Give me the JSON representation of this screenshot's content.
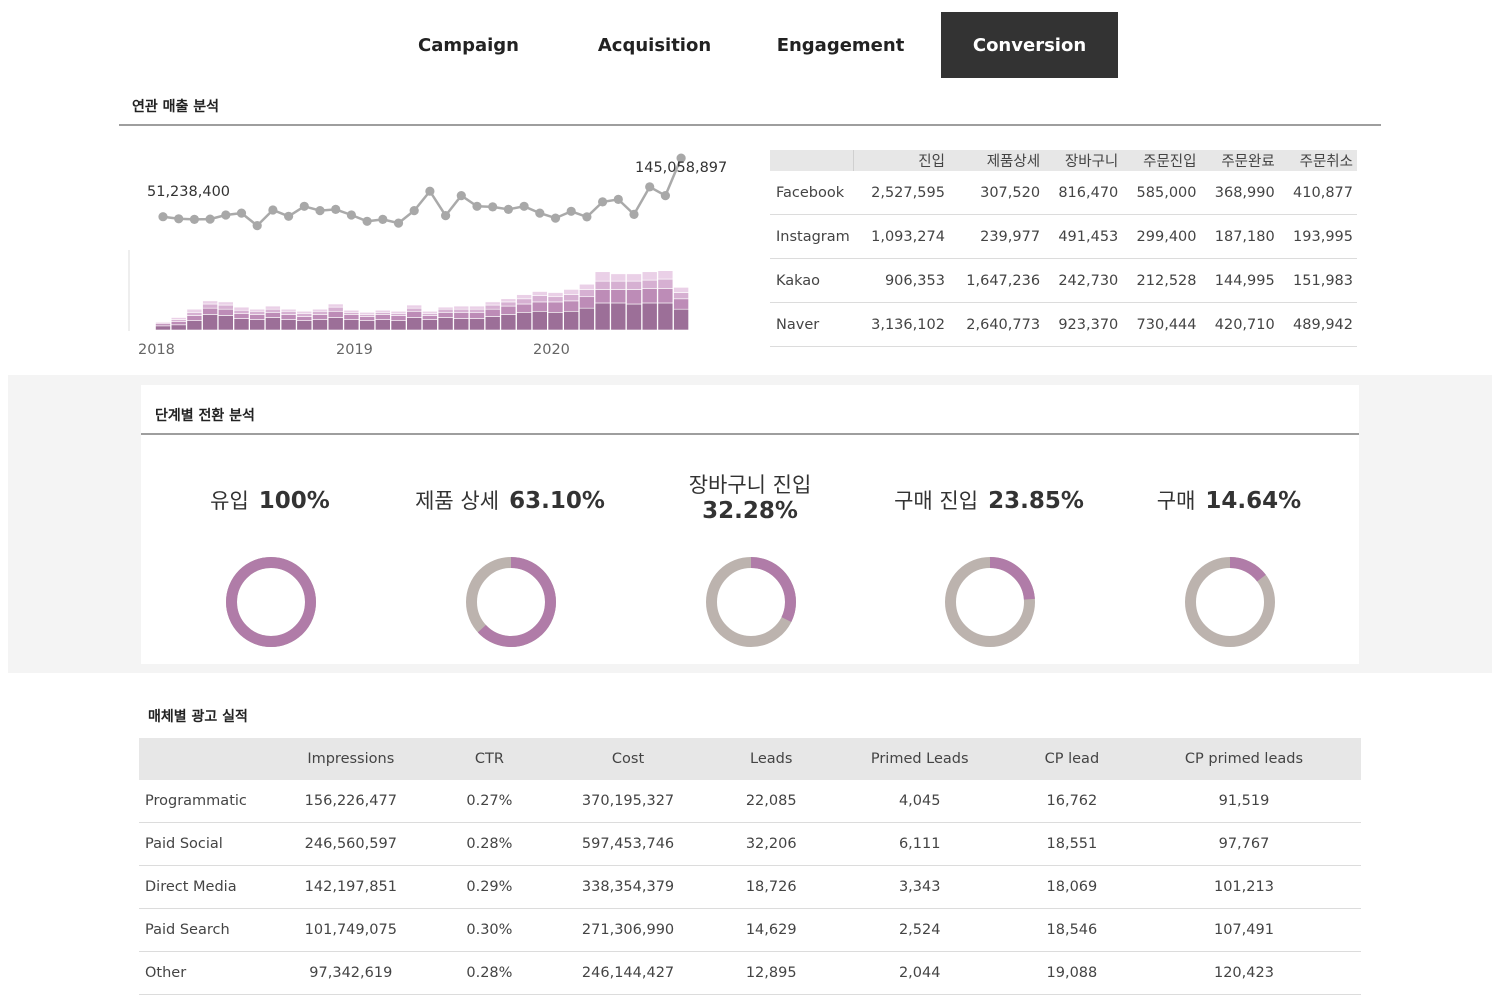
{
  "tabs": [
    {
      "label": "Campaign",
      "active": false
    },
    {
      "label": "Acquisition",
      "active": false
    },
    {
      "label": "Engagement",
      "active": false
    },
    {
      "label": "Conversion",
      "active": true
    }
  ],
  "revenue_section": {
    "title": "연관 매출 분석",
    "start_label": "51,238,400",
    "end_label": "145,058,897",
    "year_labels": [
      "2018",
      "2019",
      "2020"
    ]
  },
  "chart_data": [
    {
      "type": "line",
      "title": "연관 매출 분석",
      "x_labels": [
        "2018",
        "2019",
        "2020"
      ],
      "values": [
        51238400,
        48000000,
        47000000,
        47500000,
        54000000,
        57000000,
        37000000,
        62000000,
        52000000,
        68000000,
        61000000,
        63000000,
        54000000,
        44000000,
        47000000,
        41000000,
        61000000,
        92000000,
        53000000,
        85000000,
        68000000,
        67000000,
        63000000,
        68000000,
        57000000,
        49000000,
        60000000,
        51000000,
        75000000,
        79000000,
        55000000,
        99000000,
        85000000,
        145058897
      ],
      "annotations": [
        "51,238,400",
        "145,058,897"
      ]
    },
    {
      "type": "bar",
      "stacked": true,
      "x_labels": [
        "2018",
        "2019",
        "2020"
      ],
      "series": [
        {
          "name": "base",
          "color": "#9c6f98",
          "values": [
            4,
            5,
            9,
            15,
            14,
            11,
            10,
            12,
            10,
            9,
            10,
            12,
            10,
            9,
            10,
            9,
            12,
            10,
            12,
            11,
            11,
            13,
            15,
            17,
            18,
            17,
            18,
            21,
            26,
            26,
            25,
            26,
            26,
            20
          ]
        },
        {
          "name": "mid",
          "color": "#bd8cb7",
          "values": [
            2,
            3,
            5,
            6,
            6,
            5,
            5,
            5,
            5,
            4,
            5,
            6,
            5,
            4,
            5,
            5,
            6,
            4,
            5,
            6,
            6,
            7,
            8,
            8,
            9,
            10,
            10,
            11,
            13,
            13,
            14,
            14,
            14,
            10
          ]
        },
        {
          "name": "light",
          "color": "#d6b0d2",
          "values": [
            1,
            2,
            3,
            4,
            4,
            3,
            3,
            3,
            3,
            3,
            3,
            4,
            2,
            2,
            2,
            2,
            3,
            2,
            3,
            3,
            3,
            4,
            4,
            5,
            6,
            5,
            6,
            7,
            8,
            8,
            8,
            8,
            9,
            6
          ]
        },
        {
          "name": "lightest",
          "color": "#ead0e7",
          "values": [
            1,
            2,
            3,
            3,
            3,
            3,
            2,
            3,
            2,
            2,
            2,
            3,
            2,
            2,
            2,
            2,
            3,
            2,
            2,
            3,
            3,
            3,
            3,
            4,
            4,
            4,
            5,
            5,
            9,
            7,
            7,
            8,
            8,
            5
          ]
        }
      ]
    }
  ],
  "channel_table": {
    "columns": [
      "진입",
      "제품상세",
      "장바구니",
      "주문진입",
      "주문완료",
      "주문취소"
    ],
    "rows": [
      {
        "name": "Facebook",
        "values": [
          "2,527,595",
          "307,520",
          "816,470",
          "585,000",
          "368,990",
          "410,877"
        ]
      },
      {
        "name": "Instagram",
        "values": [
          "1,093,274",
          "239,977",
          "491,453",
          "299,400",
          "187,180",
          "193,995"
        ]
      },
      {
        "name": "Kakao",
        "values": [
          "906,353",
          "1,647,236",
          "242,730",
          "212,528",
          "144,995",
          "151,983"
        ]
      },
      {
        "name": "Naver",
        "values": [
          "3,136,102",
          "2,640,773",
          "923,370",
          "730,444",
          "420,710",
          "489,942"
        ]
      }
    ]
  },
  "funnel": {
    "title": "단계별 전환 분석",
    "colors": {
      "filled": "#b07ca8",
      "remaining": "#bcb3ae"
    },
    "stages": [
      {
        "label": "유입",
        "percent_text": "100%",
        "value": 100
      },
      {
        "label": "제품 상세",
        "percent_text": "63.10%",
        "value": 63.1
      },
      {
        "label": "장바구니 진입",
        "percent_text": "32.28%",
        "value": 32.28
      },
      {
        "label": "구매 진입",
        "percent_text": "23.85%",
        "value": 23.85
      },
      {
        "label": "구매",
        "percent_text": "14.64%",
        "value": 14.64
      }
    ]
  },
  "ad_section": {
    "title": "매체별 광고 실적",
    "columns": [
      "Impressions",
      "CTR",
      "Cost",
      "Leads",
      "Primed Leads",
      "CP lead",
      "CP primed leads"
    ],
    "rows": [
      {
        "name": "Programmatic",
        "values": [
          "156,226,477",
          "0.27%",
          "370,195,327",
          "22,085",
          "4,045",
          "16,762",
          "91,519"
        ]
      },
      {
        "name": "Paid Social",
        "values": [
          "246,560,597",
          "0.28%",
          "597,453,746",
          "32,206",
          "6,111",
          "18,551",
          "97,767"
        ]
      },
      {
        "name": "Direct Media",
        "values": [
          "142,197,851",
          "0.29%",
          "338,354,379",
          "18,726",
          "3,343",
          "18,069",
          "101,213"
        ]
      },
      {
        "name": "Paid Search",
        "values": [
          "101,749,075",
          "0.30%",
          "271,306,990",
          "14,629",
          "2,524",
          "18,546",
          "107,491"
        ]
      },
      {
        "name": "Other",
        "values": [
          "97,342,619",
          "0.28%",
          "246,144,427",
          "12,895",
          "2,044",
          "19,088",
          "120,423"
        ]
      }
    ]
  }
}
